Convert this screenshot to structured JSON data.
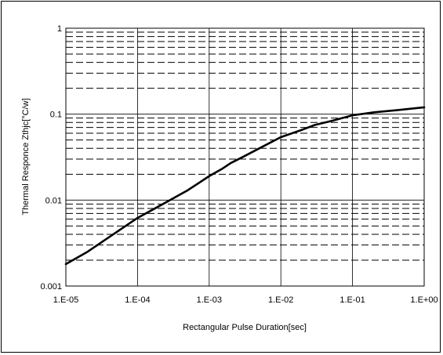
{
  "chart_data": {
    "type": "line",
    "title": "",
    "xlabel": "Rectangular Pulse Duration[sec]",
    "ylabel": "Thermal Responce Zthjc[°C/w]",
    "xscale": "log",
    "yscale": "log",
    "xlim": [
      1e-05,
      1
    ],
    "ylim": [
      0.001,
      1
    ],
    "x_tick_values": [
      1e-05,
      0.0001,
      0.001,
      0.01,
      0.1,
      1
    ],
    "x_tick_labels": [
      "1.E-05",
      "1.E-04",
      "1.E-03",
      "1.E-02",
      "1.E-01",
      "1.E+00"
    ],
    "y_tick_values": [
      0.001,
      0.01,
      0.1,
      1
    ],
    "y_tick_labels": [
      "0.001",
      "0.01",
      "0.1",
      "1"
    ],
    "grid": true,
    "minor_grid_style": "dashed",
    "line_color": "#000000",
    "series": [
      {
        "x": [
          1e-05,
          2e-05,
          5e-05,
          0.0001,
          0.0002,
          0.0005,
          0.001,
          0.0015,
          0.002,
          0.003,
          0.005,
          0.01,
          0.02,
          0.03,
          0.05,
          0.1,
          0.2,
          0.5,
          1
        ],
        "y": [
          0.0018,
          0.0025,
          0.0042,
          0.0062,
          0.0085,
          0.013,
          0.019,
          0.023,
          0.027,
          0.032,
          0.04,
          0.054,
          0.066,
          0.075,
          0.083,
          0.097,
          0.105,
          0.113,
          0.12
        ]
      }
    ]
  }
}
